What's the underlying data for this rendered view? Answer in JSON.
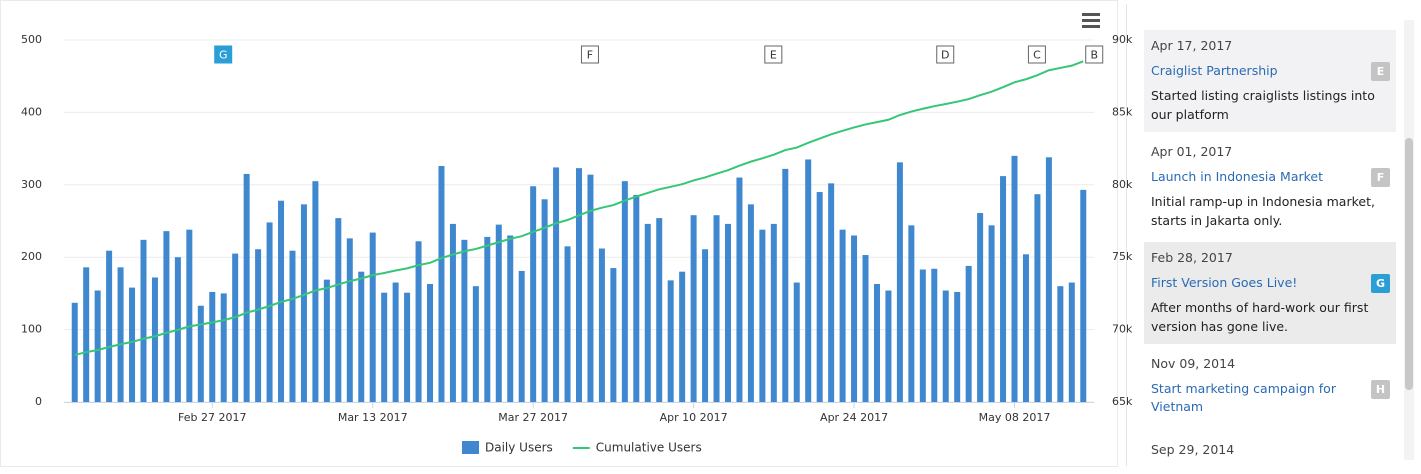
{
  "chart_data": {
    "type": "bar-line",
    "x": [
      "2017-02-15",
      "2017-02-16",
      "2017-02-17",
      "2017-02-18",
      "2017-02-19",
      "2017-02-20",
      "2017-02-21",
      "2017-02-22",
      "2017-02-23",
      "2017-02-24",
      "2017-02-25",
      "2017-02-26",
      "2017-02-27",
      "2017-02-28",
      "2017-03-01",
      "2017-03-02",
      "2017-03-03",
      "2017-03-04",
      "2017-03-05",
      "2017-03-06",
      "2017-03-07",
      "2017-03-08",
      "2017-03-09",
      "2017-03-10",
      "2017-03-11",
      "2017-03-12",
      "2017-03-13",
      "2017-03-14",
      "2017-03-15",
      "2017-03-16",
      "2017-03-17",
      "2017-03-18",
      "2017-03-19",
      "2017-03-20",
      "2017-03-21",
      "2017-03-22",
      "2017-03-23",
      "2017-03-24",
      "2017-03-25",
      "2017-03-26",
      "2017-03-27",
      "2017-03-28",
      "2017-03-29",
      "2017-03-30",
      "2017-03-31",
      "2017-04-01",
      "2017-04-02",
      "2017-04-03",
      "2017-04-04",
      "2017-04-05",
      "2017-04-06",
      "2017-04-07",
      "2017-04-08",
      "2017-04-09",
      "2017-04-10",
      "2017-04-11",
      "2017-04-12",
      "2017-04-13",
      "2017-04-14",
      "2017-04-15",
      "2017-04-16",
      "2017-04-17",
      "2017-04-18",
      "2017-04-19",
      "2017-04-20",
      "2017-04-21",
      "2017-04-22",
      "2017-04-23",
      "2017-04-24",
      "2017-04-25",
      "2017-04-26",
      "2017-04-27",
      "2017-04-28",
      "2017-04-29",
      "2017-04-30",
      "2017-05-01",
      "2017-05-02",
      "2017-05-03",
      "2017-05-04",
      "2017-05-05",
      "2017-05-06",
      "2017-05-07",
      "2017-05-08",
      "2017-05-09",
      "2017-05-10",
      "2017-05-11",
      "2017-05-12",
      "2017-05-13",
      "2017-05-14"
    ],
    "series": [
      {
        "name": "Daily Users",
        "type": "bar",
        "color": "#3f88d0",
        "values": [
          137,
          186,
          154,
          209,
          186,
          158,
          224,
          172,
          236,
          200,
          238,
          133,
          152,
          150,
          205,
          315,
          211,
          248,
          278,
          209,
          273,
          305,
          169,
          254,
          226,
          180,
          234,
          151,
          165,
          151,
          222,
          163,
          326,
          246,
          224,
          160,
          228,
          245,
          230,
          181,
          298,
          280,
          324,
          215,
          323,
          314,
          212,
          185,
          305,
          286,
          246,
          254,
          168,
          180,
          258,
          211,
          258,
          246,
          310,
          273,
          238,
          246,
          322,
          165,
          335,
          290,
          302,
          238,
          230,
          203,
          163,
          154,
          331,
          244,
          183,
          184,
          154,
          152,
          188,
          261,
          244,
          312,
          340,
          204,
          287,
          338,
          160,
          165,
          293
        ]
      },
      {
        "name": "Cumulative Users",
        "type": "line",
        "axis": "y2",
        "color": "#35c677",
        "values": [
          68250,
          68440,
          68590,
          68800,
          68990,
          69150,
          69370,
          69540,
          69780,
          69980,
          70220,
          70350,
          70500,
          70650,
          70860,
          71170,
          71380,
          71630,
          71910,
          72120,
          72390,
          72700,
          72870,
          73120,
          73350,
          73530,
          73760,
          73910,
          74080,
          74230,
          74450,
          74610,
          74940,
          75180,
          75410,
          75570,
          75800,
          76040,
          76270,
          76450,
          76750,
          77030,
          77350,
          77570,
          77890,
          78200,
          78420,
          78600,
          78910,
          79190,
          79440,
          79690,
          79860,
          80040,
          80300,
          80510,
          80770,
          81010,
          81320,
          81600,
          81830,
          82080,
          82400,
          82570,
          82900,
          83190,
          83490,
          83730,
          83960,
          84170,
          84330,
          84490,
          84820,
          85060,
          85250,
          85430,
          85580,
          85740,
          85920,
          86190,
          86430,
          86740,
          87080,
          87290,
          87570,
          87910,
          88070,
          88230,
          88530
        ]
      }
    ],
    "xlim": [
      "2017-02-15",
      "2017-05-14"
    ],
    "xticks": [
      {
        "value": "2017-02-27",
        "label": "Feb 27 2017"
      },
      {
        "value": "2017-03-13",
        "label": "Mar 13 2017"
      },
      {
        "value": "2017-03-27",
        "label": "Mar 27 2017"
      },
      {
        "value": "2017-04-10",
        "label": "Apr 10 2017"
      },
      {
        "value": "2017-04-24",
        "label": "Apr 24 2017"
      },
      {
        "value": "2017-05-08",
        "label": "May 08 2017"
      }
    ],
    "ylim": [
      0,
      500
    ],
    "yticks": [
      0,
      100,
      200,
      300,
      400,
      500
    ],
    "y2lim": [
      65000,
      90000
    ],
    "y2ticks": [
      {
        "value": 65000,
        "label": "65k"
      },
      {
        "value": 70000,
        "label": "70k"
      },
      {
        "value": 75000,
        "label": "75k"
      },
      {
        "value": 80000,
        "label": "80k"
      },
      {
        "value": 85000,
        "label": "85k"
      },
      {
        "value": 90000,
        "label": "90k"
      }
    ],
    "grid": true,
    "legend": "bottom",
    "flags": [
      {
        "label": "G",
        "x": "2017-02-28",
        "selected": true
      },
      {
        "label": "F",
        "x": "2017-04-01"
      },
      {
        "label": "E",
        "x": "2017-04-17"
      },
      {
        "label": "D",
        "x": "2017-05-02"
      },
      {
        "label": "C",
        "x": "2017-05-10"
      },
      {
        "label": "B",
        "x": "2017-05-15"
      }
    ]
  },
  "events": [
    {
      "date": "Apr 17, 2017",
      "title": "Craiglist Partnership",
      "flag": "E",
      "description": "Started listing craiglists listings into our platform",
      "hover": true
    },
    {
      "date": "Apr 01, 2017",
      "title": "Launch in Indonesia Market",
      "flag": "F",
      "description": "Initial ramp-up in Indonesia market, starts in Jakarta only."
    },
    {
      "date": "Feb 28, 2017",
      "title": "First Version Goes Live!",
      "flag": "G",
      "description": "After months of hard-work our first version has gone live.",
      "selected": true
    },
    {
      "date": "Nov 09, 2014",
      "title": "Start marketing campaign for Vietnam",
      "flag": "H"
    },
    {
      "date": "Sep 29, 2014"
    }
  ]
}
